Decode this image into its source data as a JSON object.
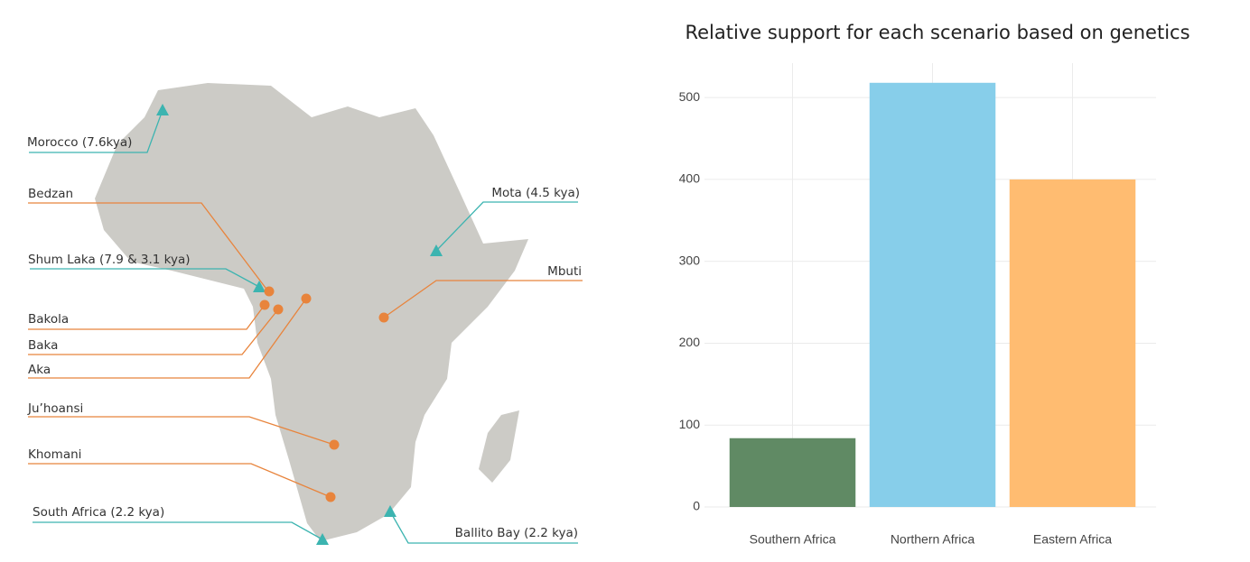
{
  "map": {
    "ancient_sites": [
      "Morocco (7.6kya)",
      "Shum Laka (7.9 & 3.1 kya)",
      "South Africa (2.2 kya)",
      "Mota (4.5 kya)",
      "Ballito Bay (2.2 kya)"
    ],
    "modern_sites": [
      "Bedzan",
      "Bakola",
      "Baka",
      "Aka",
      "Ju’hoansi",
      "Khomani",
      "Mbuti"
    ],
    "ancient_color": "#3cb4b0",
    "modern_color": "#e8843c"
  },
  "chart_data": {
    "type": "bar",
    "title": "Relative support for each scenario based on genetics",
    "categories": [
      "Southern Africa",
      "Northern Africa",
      "Eastern Africa"
    ],
    "values": [
      84,
      518,
      400
    ],
    "colors": [
      "#608a64",
      "#87ceea",
      "#ffbc71"
    ],
    "ylim": [
      0,
      542
    ],
    "yticks": [
      0,
      100,
      200,
      300,
      400,
      500
    ],
    "grid": true
  }
}
